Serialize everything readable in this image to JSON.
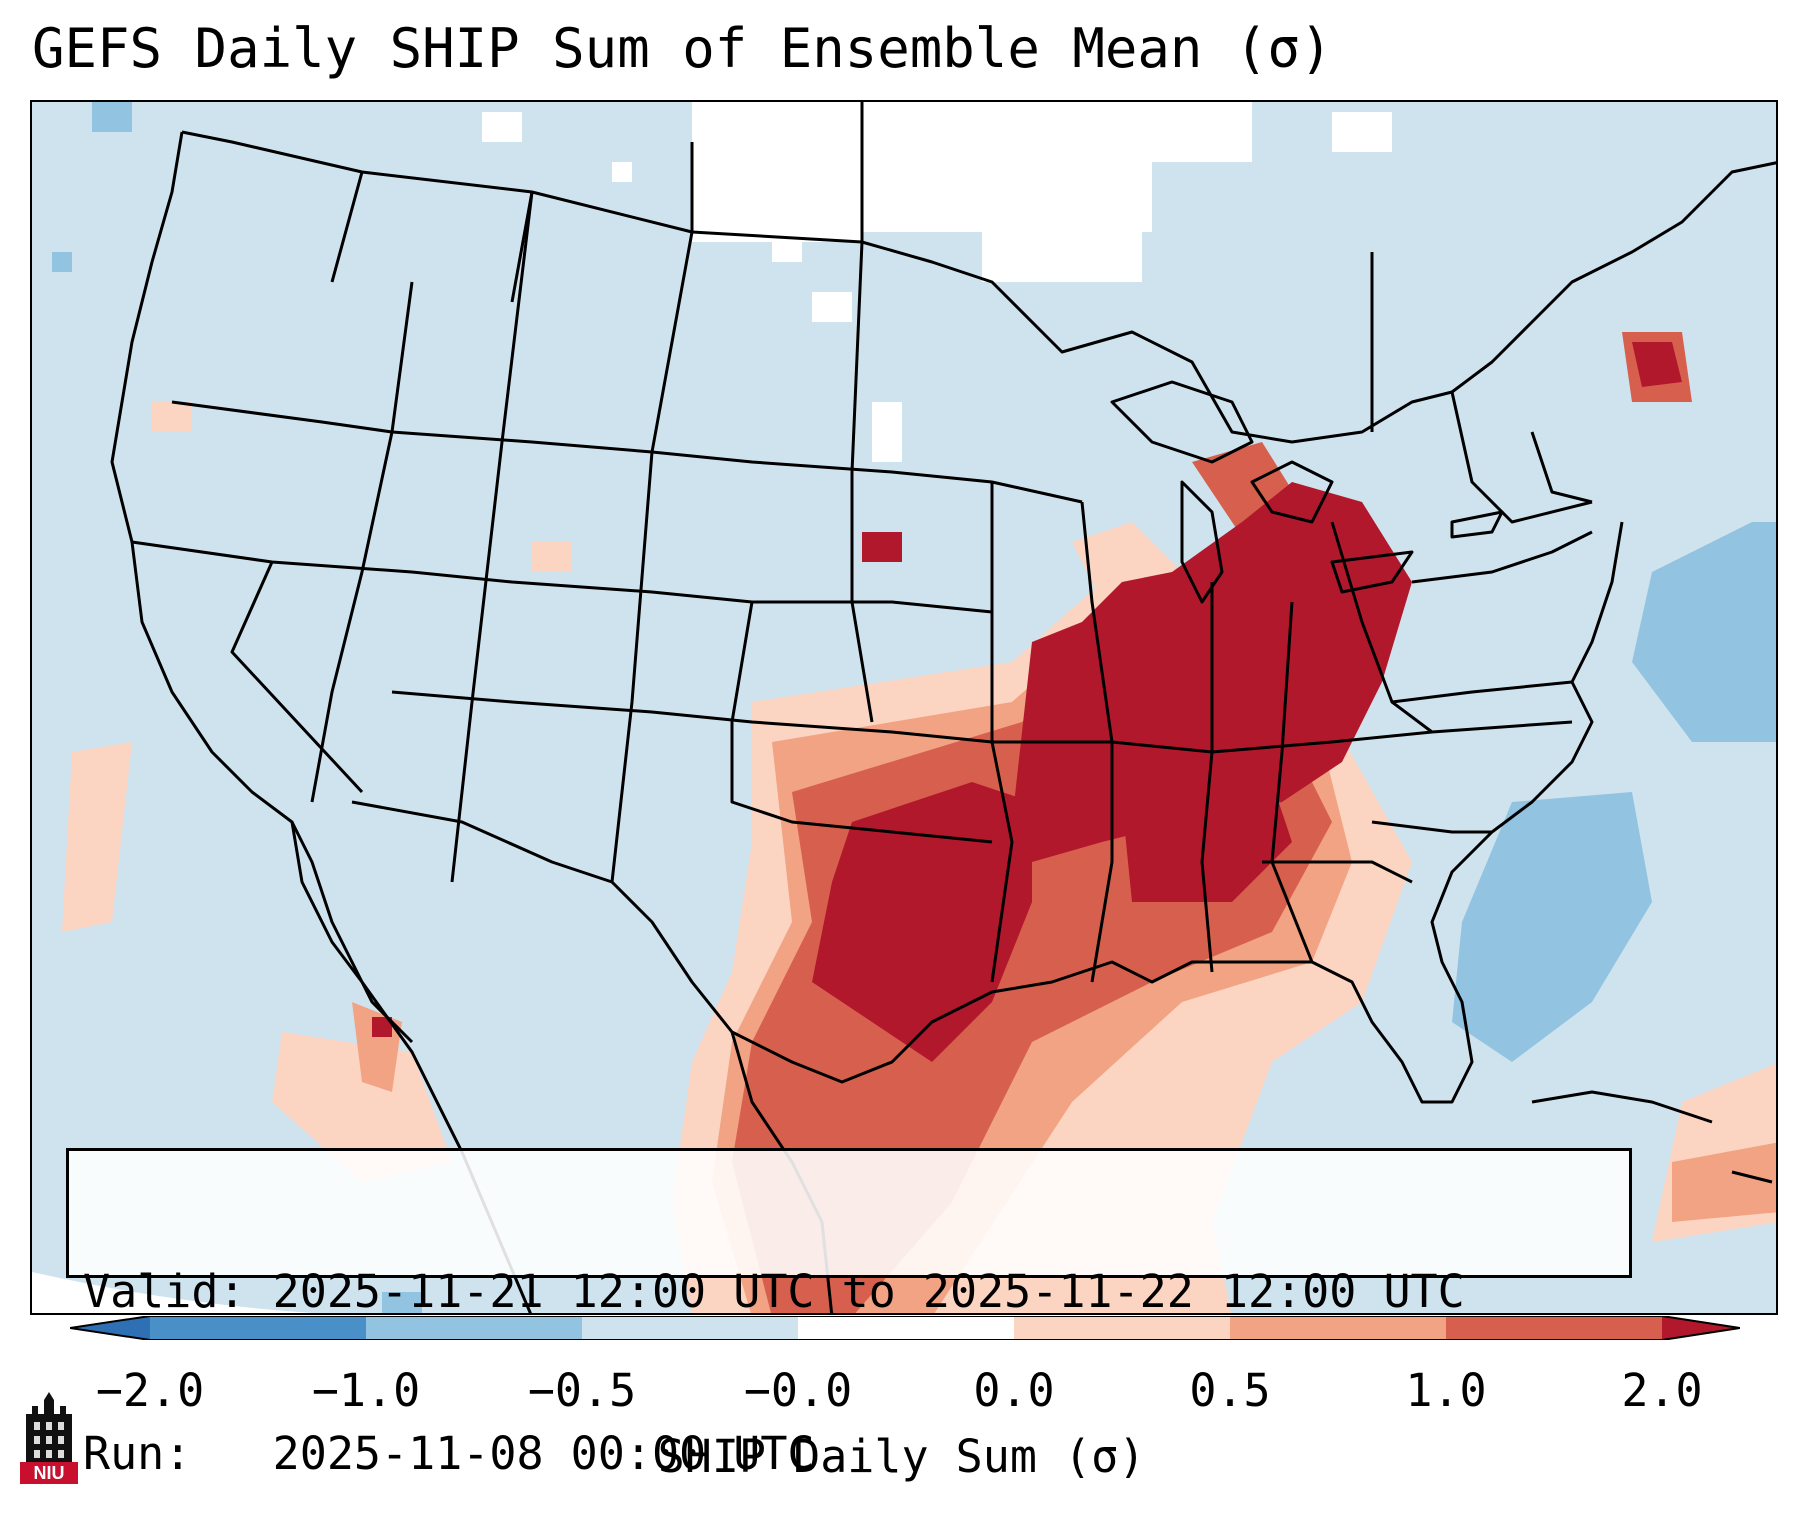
{
  "title": "GEFS Daily SHIP Sum of Ensemble Mean (σ)",
  "info": {
    "valid_label": "Valid:",
    "valid_value": "2025-11-21 12:00 UTC to 2025-11-22 12:00 UTC",
    "run_label": "Run:",
    "run_value": "2025-11-08 00:00 UTC"
  },
  "colorbar": {
    "label": "SHIP Daily Sum (σ)",
    "ticks": [
      "−2.0",
      "−1.0",
      "−0.5",
      "−0.0",
      "0.0",
      "0.5",
      "1.0",
      "2.0"
    ],
    "colors": {
      "below": "#2f6fb3",
      "b1": "#4a90c8",
      "b2": "#92c3e0",
      "b3": "#cfe3ef",
      "b4": "#ffffff",
      "b5": "#fbd5c2",
      "b6": "#f2a383",
      "b7": "#d6604d",
      "above": "#b2182b"
    }
  },
  "logo": {
    "text": "NIU",
    "color": "#c8102e"
  }
}
